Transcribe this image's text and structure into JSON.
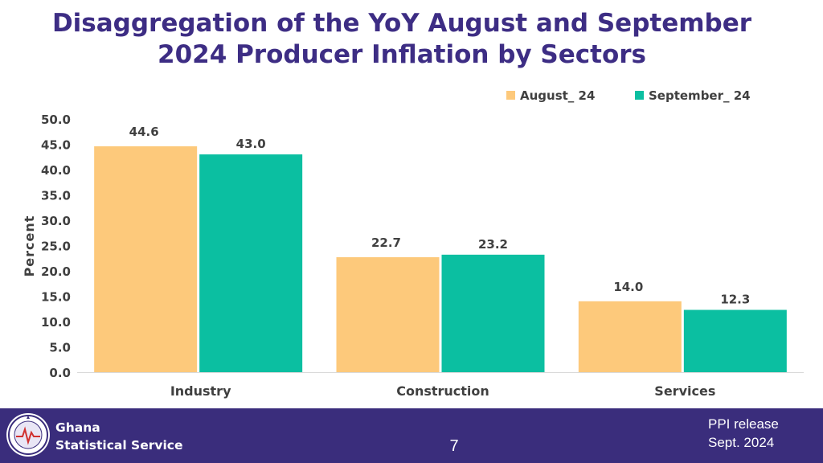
{
  "chart_data": {
    "type": "bar",
    "title_lines": [
      "Disaggregation of the YoY August and September",
      "2024 Producer Inflation by Sectors"
    ],
    "categories": [
      "Industry",
      "Construction",
      "Services"
    ],
    "series": [
      {
        "name": "August_ 24",
        "values": [
          44.6,
          22.7,
          14.0
        ],
        "labels": [
          "44.6",
          "22.7",
          "14.0"
        ],
        "color": "#fdc97b"
      },
      {
        "name": "September_ 24",
        "values": [
          43.0,
          23.2,
          12.3
        ],
        "labels": [
          "43.0",
          "23.2",
          "12.3"
        ],
        "color": "#0bbfa1"
      }
    ],
    "ylabel": "Percent",
    "ylim": [
      0,
      50
    ],
    "yticks": [
      "0.0",
      "5.0",
      "10.0",
      "15.0",
      "20.0",
      "25.0",
      "30.0",
      "35.0",
      "40.0",
      "45.0",
      "50.0"
    ],
    "grid": false,
    "legend_position": "top-right"
  },
  "footer": {
    "org_line1": "Ghana",
    "org_line2": "Statistical Service",
    "page_number": "7",
    "release_line1": "PPI release",
    "release_line2": "Sept. 2024",
    "background_color": "#3a2d7c"
  },
  "colors": {
    "title": "#3d2d84",
    "text": "#404040"
  }
}
